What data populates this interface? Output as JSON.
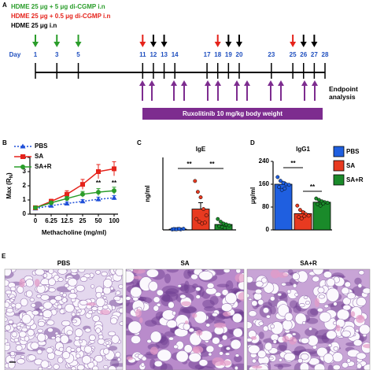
{
  "panel_a": {
    "label": "A",
    "legend": [
      {
        "text": "HDME 25 μg + 5 μg di-CGMP i.n",
        "color": "#2a9d2a",
        "days": [
          1,
          3,
          5
        ]
      },
      {
        "text": "HDME 25 μg + 0.5 μg di-CGMP i.n",
        "color": "#e5231b",
        "days": [
          11,
          18,
          25
        ]
      },
      {
        "text": "HDME 25 μg i.n",
        "color": "#000000",
        "days": [
          12,
          13,
          19,
          20,
          26,
          27
        ]
      }
    ],
    "day_label": "Day",
    "days": [
      1,
      3,
      5,
      11,
      12,
      13,
      14,
      17,
      18,
      19,
      20,
      23,
      25,
      26,
      27,
      28
    ],
    "day_color": "#1f4fbf",
    "treatment": {
      "text": "Ruxolitinib 10 mg/kg body weight",
      "color": "#7d2c8f"
    },
    "endpoint": "Endpoint analysis"
  },
  "chart_data": [
    {
      "type": "line",
      "label": "B",
      "y_label": [
        "Max (R",
        "N",
        ")"
      ],
      "x_label": "Methacholine (mg/ml)",
      "categories": [
        "0",
        "6.25",
        "12.5",
        "25",
        "50",
        "100"
      ],
      "ylim": [
        0,
        4
      ],
      "yticks": [
        0,
        1,
        2,
        3,
        4
      ],
      "legend": "upper left",
      "series": [
        {
          "name": "PBS",
          "color": "#1f4fd8",
          "marker": "triangle",
          "dash": true,
          "values": [
            0.4,
            0.6,
            0.75,
            0.9,
            1.05,
            1.15
          ],
          "errors": [
            0.05,
            0.08,
            0.1,
            0.12,
            0.15,
            0.15
          ]
        },
        {
          "name": "SA",
          "color": "#e5231b",
          "marker": "square",
          "dash": false,
          "values": [
            0.45,
            0.9,
            1.4,
            2.1,
            3.0,
            3.2
          ],
          "errors": [
            0.05,
            0.15,
            0.25,
            0.35,
            0.5,
            0.5
          ]
        },
        {
          "name": "SA+R",
          "color": "#2a9d2a",
          "marker": "circle",
          "dash": false,
          "values": [
            0.45,
            0.8,
            1.1,
            1.4,
            1.55,
            1.65
          ],
          "errors": [
            0.05,
            0.1,
            0.15,
            0.2,
            0.25,
            0.25
          ]
        }
      ],
      "annotations": [
        {
          "text": "**",
          "x": "50"
        },
        {
          "text": "**",
          "x": "100"
        }
      ]
    },
    {
      "type": "bar",
      "label": "C",
      "title": "IgE",
      "y_label": "ng/ml",
      "categories": [
        null,
        null,
        null
      ],
      "ylim": [
        0,
        8000
      ],
      "values": [
        80,
        2300,
        600
      ],
      "errors": [
        30,
        700,
        150
      ],
      "colors": [
        "#1f5fe0",
        "#e83a20",
        "#1a8a2a"
      ],
      "points": [
        [
          50,
          80,
          100,
          60,
          120,
          90,
          70,
          110
        ],
        [
          5400,
          4200,
          3600,
          2300,
          1600,
          1200,
          900,
          700,
          800
        ],
        [
          1200,
          900,
          700,
          600,
          500,
          400,
          300,
          200
        ]
      ],
      "comparisons": [
        {
          "text": "**",
          "from": 0,
          "to": 1
        },
        {
          "text": "**",
          "from": 1,
          "to": 2
        }
      ]
    },
    {
      "type": "bar",
      "label": "D",
      "title": "IgG1",
      "y_label": "μg/ml",
      "categories": [
        null,
        null,
        null
      ],
      "ylim": [
        0,
        240
      ],
      "yticks": [
        0,
        80,
        160,
        240
      ],
      "values": [
        160,
        57,
        97
      ],
      "errors": [
        8,
        8,
        5
      ],
      "colors": [
        "#1f5fe0",
        "#e83a20",
        "#1a8a2a"
      ],
      "points": [
        [
          185,
          172,
          165,
          160,
          158,
          150,
          140,
          145
        ],
        [
          85,
          70,
          62,
          55,
          50,
          45,
          40,
          48
        ],
        [
          110,
          105,
          100,
          97,
          95,
          90,
          85,
          92
        ]
      ],
      "comparisons": [
        {
          "text": "**",
          "from": 0,
          "to": 1
        },
        {
          "text": "**",
          "from": 1,
          "to": 2
        }
      ],
      "legend": [
        "PBS",
        "SA",
        "SA+R"
      ]
    }
  ],
  "panel_e": {
    "label": "E",
    "images": [
      {
        "title": "PBS"
      },
      {
        "title": "SA"
      },
      {
        "title": "SA+R"
      }
    ]
  }
}
